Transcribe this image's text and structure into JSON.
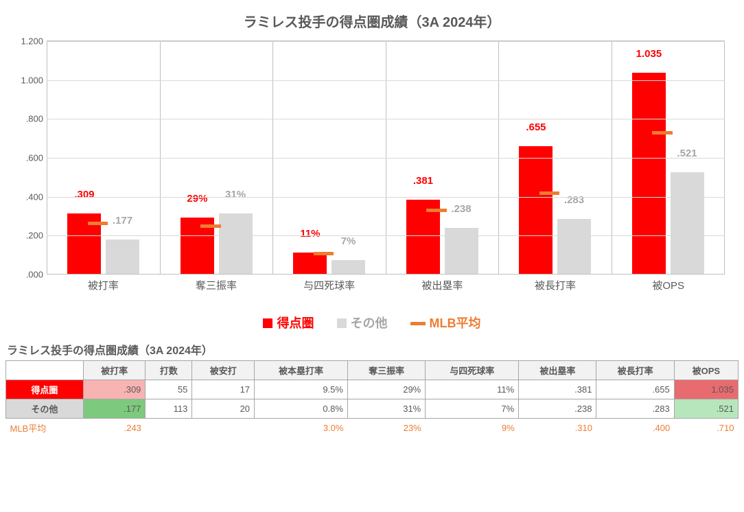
{
  "chart": {
    "title": "ラミレス投手の得点圏成績（3A 2024年）",
    "y_max": 1.2,
    "y_ticks": [
      0,
      0.2,
      0.4,
      0.6,
      0.8,
      1.0,
      1.2
    ],
    "y_tick_labels": [
      ".000",
      ".200",
      ".400",
      ".600",
      ".800",
      "1.000",
      "1.200"
    ],
    "colors": {
      "series1": "#ff0000",
      "series2": "#d9d9d9",
      "series2_label": "#a6a6a6",
      "mlb": "#ed7d31",
      "grid": "#d9d9d9",
      "axis": "#bfbfbf",
      "text": "#595959"
    },
    "legend": {
      "s1": "得点圏",
      "s2": "その他",
      "mlb": "MLB平均"
    },
    "categories": [
      {
        "label": "被打率",
        "v1": 0.309,
        "v2": 0.177,
        "mlb": 0.243,
        "d1": ".309",
        "d2": ".177"
      },
      {
        "label": "奪三振率",
        "v1": 0.29,
        "v2": 0.31,
        "mlb": 0.23,
        "d1": "29%",
        "d2": "31%"
      },
      {
        "label": "与四死球率",
        "v1": 0.11,
        "v2": 0.07,
        "mlb": 0.09,
        "d1": "11%",
        "d2": "7%"
      },
      {
        "label": "被出塁率",
        "v1": 0.381,
        "v2": 0.238,
        "mlb": 0.31,
        "d1": ".381",
        "d2": ".238"
      },
      {
        "label": "被長打率",
        "v1": 0.655,
        "v2": 0.283,
        "mlb": 0.4,
        "d1": ".655",
        "d2": ".283"
      },
      {
        "label": "被OPS",
        "v1": 1.035,
        "v2": 0.521,
        "mlb": 0.71,
        "d1": "1.035",
        "d2": ".521"
      }
    ]
  },
  "table": {
    "title": "ラミレス投手の得点圏成績（3A 2024年）",
    "columns": [
      "被打率",
      "打数",
      "被安打",
      "被本塁打率",
      "奪三振率",
      "与四死球率",
      "被出塁率",
      "被長打率",
      "被OPS"
    ],
    "rows": [
      {
        "hdr": "得点圏",
        "hdr_bg": "#ff0000",
        "hdr_fg": "#ffffff",
        "cells": [
          {
            "v": ".309",
            "bg": "#f8b3b3"
          },
          {
            "v": "55"
          },
          {
            "v": "17"
          },
          {
            "v": "9.5%"
          },
          {
            "v": "29%"
          },
          {
            "v": "11%"
          },
          {
            "v": ".381"
          },
          {
            "v": ".655"
          },
          {
            "v": "1.035",
            "bg": "#e86b6f"
          }
        ]
      },
      {
        "hdr": "その他",
        "hdr_bg": "#d9d9d9",
        "hdr_fg": "#595959",
        "cells": [
          {
            "v": ".177",
            "bg": "#7dc97d"
          },
          {
            "v": "113"
          },
          {
            "v": "20"
          },
          {
            "v": "0.8%"
          },
          {
            "v": "31%"
          },
          {
            "v": "7%"
          },
          {
            "v": ".238"
          },
          {
            "v": ".283"
          },
          {
            "v": ".521",
            "bg": "#b7e6bd"
          }
        ]
      }
    ],
    "mlb_row": {
      "hdr": "MLB平均",
      "color": "#ed7d31",
      "cells": [
        ".243",
        "",
        "",
        "3.0%",
        "23%",
        "9%",
        ".310",
        ".400",
        ".710"
      ]
    }
  }
}
